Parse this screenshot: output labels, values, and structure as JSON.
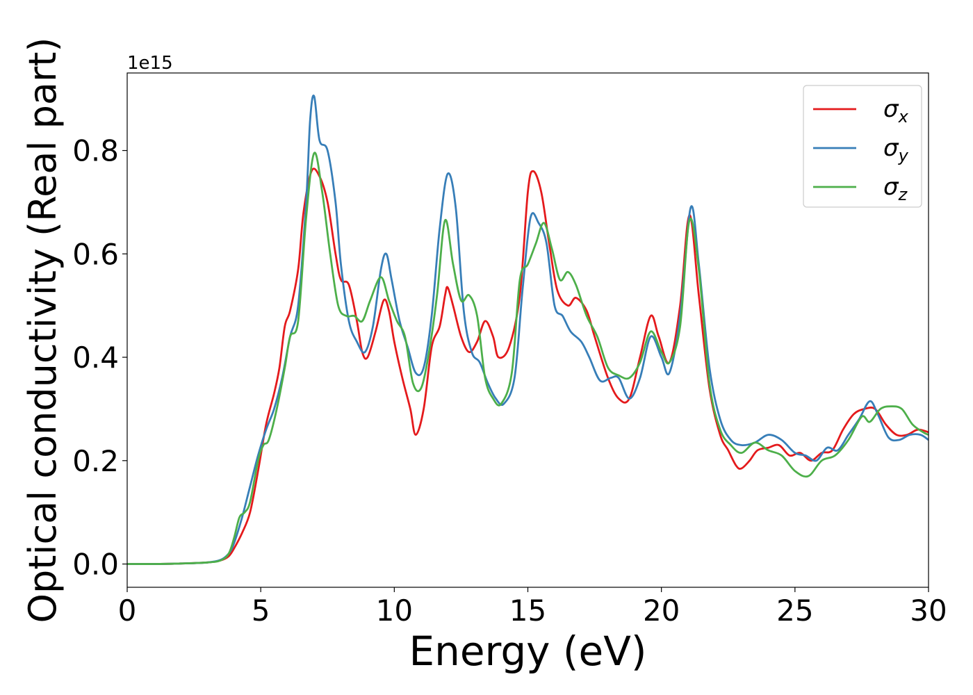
{
  "chart_data": {
    "type": "line",
    "xlabel": "Energy (eV)",
    "ylabel": "Optical conductivity (Real part)",
    "offset_text": "1e15",
    "xlim": [
      0,
      30
    ],
    "ylim": [
      -0.045,
      0.95
    ],
    "x_ticks": [
      0,
      5,
      10,
      15,
      20,
      25,
      30
    ],
    "x_tick_labels": [
      "0",
      "5",
      "10",
      "15",
      "20",
      "25",
      "30"
    ],
    "y_ticks": [
      0.0,
      0.2,
      0.4,
      0.6,
      0.8
    ],
    "y_tick_labels": [
      "0.0",
      "0.2",
      "0.4",
      "0.6",
      "0.8"
    ],
    "grid": false,
    "legend_position": "top-right",
    "series": [
      {
        "name": "σ",
        "subscript": "x",
        "color": "#e41a1c",
        "points": [
          [
            0,
            0
          ],
          [
            1,
            0
          ],
          [
            2,
            0.001
          ],
          [
            3,
            0.003
          ],
          [
            3.5,
            0.007
          ],
          [
            3.8,
            0.015
          ],
          [
            4.0,
            0.03
          ],
          [
            4.3,
            0.06
          ],
          [
            4.6,
            0.1
          ],
          [
            4.9,
            0.18
          ],
          [
            5.2,
            0.27
          ],
          [
            5.5,
            0.33
          ],
          [
            5.7,
            0.38
          ],
          [
            5.9,
            0.46
          ],
          [
            6.1,
            0.49
          ],
          [
            6.4,
            0.57
          ],
          [
            6.6,
            0.68
          ],
          [
            6.9,
            0.76
          ],
          [
            7.2,
            0.75
          ],
          [
            7.5,
            0.7
          ],
          [
            7.8,
            0.6
          ],
          [
            8.0,
            0.55
          ],
          [
            8.3,
            0.54
          ],
          [
            8.6,
            0.47
          ],
          [
            8.8,
            0.41
          ],
          [
            9.0,
            0.4
          ],
          [
            9.3,
            0.45
          ],
          [
            9.6,
            0.51
          ],
          [
            9.8,
            0.49
          ],
          [
            10.0,
            0.43
          ],
          [
            10.3,
            0.36
          ],
          [
            10.6,
            0.3
          ],
          [
            10.8,
            0.25
          ],
          [
            11.1,
            0.3
          ],
          [
            11.4,
            0.42
          ],
          [
            11.7,
            0.46
          ],
          [
            11.9,
            0.52
          ],
          [
            12.0,
            0.535
          ],
          [
            12.2,
            0.5
          ],
          [
            12.5,
            0.44
          ],
          [
            12.8,
            0.41
          ],
          [
            13.1,
            0.43
          ],
          [
            13.4,
            0.47
          ],
          [
            13.7,
            0.44
          ],
          [
            13.9,
            0.4
          ],
          [
            14.3,
            0.42
          ],
          [
            14.7,
            0.52
          ],
          [
            15.0,
            0.72
          ],
          [
            15.2,
            0.76
          ],
          [
            15.5,
            0.72
          ],
          [
            15.8,
            0.62
          ],
          [
            16.1,
            0.53
          ],
          [
            16.5,
            0.5
          ],
          [
            16.8,
            0.515
          ],
          [
            17.2,
            0.49
          ],
          [
            17.5,
            0.44
          ],
          [
            18.0,
            0.36
          ],
          [
            18.4,
            0.32
          ],
          [
            18.8,
            0.32
          ],
          [
            19.2,
            0.4
          ],
          [
            19.6,
            0.48
          ],
          [
            19.9,
            0.44
          ],
          [
            20.3,
            0.39
          ],
          [
            20.7,
            0.5
          ],
          [
            21.05,
            0.675
          ],
          [
            21.4,
            0.52
          ],
          [
            21.8,
            0.34
          ],
          [
            22.2,
            0.25
          ],
          [
            22.5,
            0.22
          ],
          [
            22.8,
            0.19
          ],
          [
            23.0,
            0.185
          ],
          [
            23.3,
            0.2
          ],
          [
            23.6,
            0.22
          ],
          [
            24.0,
            0.225
          ],
          [
            24.4,
            0.23
          ],
          [
            24.8,
            0.21
          ],
          [
            25.2,
            0.215
          ],
          [
            25.6,
            0.2
          ],
          [
            26.0,
            0.215
          ],
          [
            26.4,
            0.22
          ],
          [
            26.8,
            0.26
          ],
          [
            27.2,
            0.29
          ],
          [
            27.6,
            0.3
          ],
          [
            28.0,
            0.3
          ],
          [
            28.4,
            0.27
          ],
          [
            28.8,
            0.25
          ],
          [
            29.2,
            0.25
          ],
          [
            29.6,
            0.26
          ],
          [
            30,
            0.255
          ]
        ]
      },
      {
        "name": "σ",
        "subscript": "y",
        "color": "#377eb8",
        "points": [
          [
            0,
            0
          ],
          [
            1,
            0
          ],
          [
            2,
            0.001
          ],
          [
            3,
            0.003
          ],
          [
            3.5,
            0.008
          ],
          [
            3.8,
            0.02
          ],
          [
            4.0,
            0.04
          ],
          [
            4.3,
            0.09
          ],
          [
            4.6,
            0.15
          ],
          [
            4.9,
            0.21
          ],
          [
            5.2,
            0.26
          ],
          [
            5.5,
            0.3
          ],
          [
            5.8,
            0.36
          ],
          [
            6.1,
            0.44
          ],
          [
            6.4,
            0.5
          ],
          [
            6.7,
            0.7
          ],
          [
            6.85,
            0.86
          ],
          [
            7.0,
            0.905
          ],
          [
            7.2,
            0.82
          ],
          [
            7.5,
            0.8
          ],
          [
            7.8,
            0.7
          ],
          [
            8.0,
            0.58
          ],
          [
            8.3,
            0.47
          ],
          [
            8.6,
            0.43
          ],
          [
            8.9,
            0.41
          ],
          [
            9.2,
            0.46
          ],
          [
            9.5,
            0.57
          ],
          [
            9.7,
            0.6
          ],
          [
            9.9,
            0.55
          ],
          [
            10.2,
            0.47
          ],
          [
            10.5,
            0.42
          ],
          [
            10.8,
            0.37
          ],
          [
            11.1,
            0.38
          ],
          [
            11.4,
            0.48
          ],
          [
            11.7,
            0.65
          ],
          [
            12.0,
            0.755
          ],
          [
            12.3,
            0.69
          ],
          [
            12.6,
            0.49
          ],
          [
            12.9,
            0.41
          ],
          [
            13.2,
            0.39
          ],
          [
            13.5,
            0.35
          ],
          [
            13.8,
            0.32
          ],
          [
            14.1,
            0.31
          ],
          [
            14.5,
            0.36
          ],
          [
            14.8,
            0.53
          ],
          [
            15.1,
            0.67
          ],
          [
            15.4,
            0.66
          ],
          [
            15.7,
            0.62
          ],
          [
            16.0,
            0.5
          ],
          [
            16.3,
            0.48
          ],
          [
            16.6,
            0.45
          ],
          [
            17.0,
            0.43
          ],
          [
            17.3,
            0.4
          ],
          [
            17.7,
            0.355
          ],
          [
            18.1,
            0.36
          ],
          [
            18.4,
            0.36
          ],
          [
            18.8,
            0.32
          ],
          [
            19.2,
            0.36
          ],
          [
            19.6,
            0.44
          ],
          [
            20.0,
            0.4
          ],
          [
            20.3,
            0.37
          ],
          [
            20.7,
            0.48
          ],
          [
            21.1,
            0.69
          ],
          [
            21.4,
            0.58
          ],
          [
            21.8,
            0.38
          ],
          [
            22.2,
            0.28
          ],
          [
            22.6,
            0.24
          ],
          [
            23.0,
            0.23
          ],
          [
            23.5,
            0.235
          ],
          [
            24.0,
            0.25
          ],
          [
            24.5,
            0.24
          ],
          [
            25.0,
            0.215
          ],
          [
            25.4,
            0.21
          ],
          [
            25.8,
            0.2
          ],
          [
            26.2,
            0.225
          ],
          [
            26.6,
            0.22
          ],
          [
            27.0,
            0.25
          ],
          [
            27.4,
            0.28
          ],
          [
            27.8,
            0.315
          ],
          [
            28.1,
            0.29
          ],
          [
            28.5,
            0.245
          ],
          [
            28.9,
            0.24
          ],
          [
            29.3,
            0.25
          ],
          [
            29.7,
            0.25
          ],
          [
            30,
            0.24
          ]
        ]
      },
      {
        "name": "σ",
        "subscript": "z",
        "color": "#4daf4a",
        "points": [
          [
            0,
            0
          ],
          [
            1,
            0
          ],
          [
            2,
            0.001
          ],
          [
            3,
            0.003
          ],
          [
            3.5,
            0.007
          ],
          [
            3.8,
            0.02
          ],
          [
            4.0,
            0.05
          ],
          [
            4.2,
            0.09
          ],
          [
            4.4,
            0.1
          ],
          [
            4.6,
            0.12
          ],
          [
            4.9,
            0.2
          ],
          [
            5.1,
            0.23
          ],
          [
            5.3,
            0.24
          ],
          [
            5.6,
            0.3
          ],
          [
            5.9,
            0.38
          ],
          [
            6.1,
            0.44
          ],
          [
            6.4,
            0.47
          ],
          [
            6.7,
            0.67
          ],
          [
            7.0,
            0.795
          ],
          [
            7.3,
            0.72
          ],
          [
            7.6,
            0.6
          ],
          [
            7.9,
            0.5
          ],
          [
            8.2,
            0.48
          ],
          [
            8.5,
            0.48
          ],
          [
            8.8,
            0.47
          ],
          [
            9.1,
            0.51
          ],
          [
            9.5,
            0.555
          ],
          [
            9.8,
            0.51
          ],
          [
            10.1,
            0.47
          ],
          [
            10.4,
            0.44
          ],
          [
            10.7,
            0.35
          ],
          [
            11.0,
            0.34
          ],
          [
            11.3,
            0.41
          ],
          [
            11.6,
            0.52
          ],
          [
            11.9,
            0.665
          ],
          [
            12.2,
            0.58
          ],
          [
            12.5,
            0.51
          ],
          [
            12.8,
            0.52
          ],
          [
            13.1,
            0.48
          ],
          [
            13.4,
            0.36
          ],
          [
            13.7,
            0.32
          ],
          [
            14.0,
            0.31
          ],
          [
            14.4,
            0.37
          ],
          [
            14.7,
            0.55
          ],
          [
            15.0,
            0.58
          ],
          [
            15.3,
            0.62
          ],
          [
            15.6,
            0.66
          ],
          [
            15.9,
            0.61
          ],
          [
            16.2,
            0.55
          ],
          [
            16.5,
            0.565
          ],
          [
            16.8,
            0.54
          ],
          [
            17.2,
            0.48
          ],
          [
            17.6,
            0.44
          ],
          [
            18.0,
            0.38
          ],
          [
            18.4,
            0.365
          ],
          [
            18.8,
            0.36
          ],
          [
            19.2,
            0.39
          ],
          [
            19.6,
            0.45
          ],
          [
            20.0,
            0.41
          ],
          [
            20.3,
            0.39
          ],
          [
            20.7,
            0.46
          ],
          [
            21.05,
            0.665
          ],
          [
            21.4,
            0.57
          ],
          [
            21.8,
            0.35
          ],
          [
            22.2,
            0.26
          ],
          [
            22.6,
            0.23
          ],
          [
            23.0,
            0.215
          ],
          [
            23.5,
            0.235
          ],
          [
            24.0,
            0.22
          ],
          [
            24.5,
            0.21
          ],
          [
            25.0,
            0.18
          ],
          [
            25.5,
            0.17
          ],
          [
            26.0,
            0.2
          ],
          [
            26.5,
            0.21
          ],
          [
            27.0,
            0.24
          ],
          [
            27.5,
            0.285
          ],
          [
            27.8,
            0.275
          ],
          [
            28.2,
            0.3
          ],
          [
            28.6,
            0.305
          ],
          [
            29.0,
            0.3
          ],
          [
            29.4,
            0.27
          ],
          [
            29.8,
            0.255
          ],
          [
            30,
            0.25
          ]
        ]
      }
    ]
  }
}
